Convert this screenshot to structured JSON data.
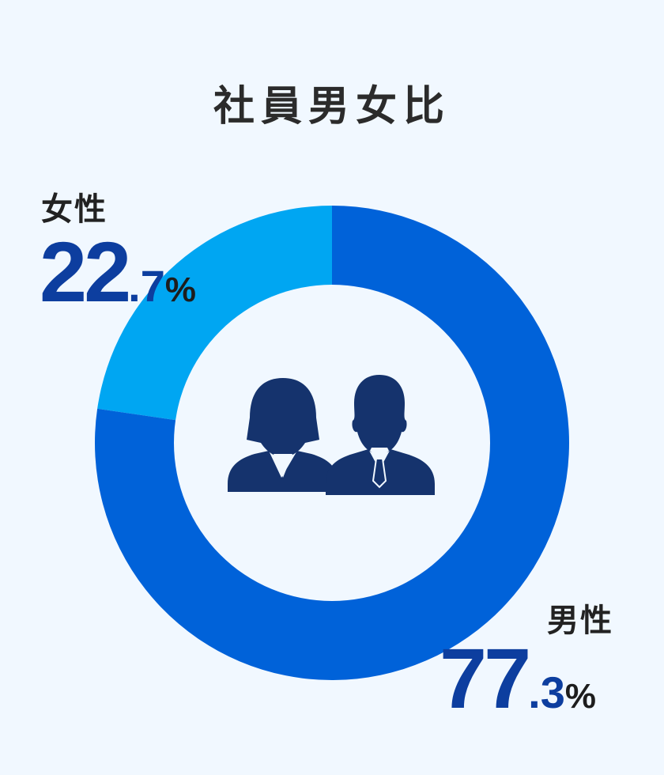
{
  "chart_data": {
    "type": "pie",
    "title": "社員男女比",
    "categories": [
      "女性",
      "男性"
    ],
    "values": [
      22.7,
      77.3
    ],
    "colors": [
      "#00a6f2",
      "#0062d9"
    ],
    "percent_labels": [
      {
        "int": "22",
        "dec": "7",
        "sym": "%"
      },
      {
        "int": "77",
        "dec": "3",
        "sym": "%"
      }
    ]
  },
  "icons": [
    "woman-silhouette-icon",
    "man-silhouette-icon"
  ],
  "icon_color": "#15336d"
}
